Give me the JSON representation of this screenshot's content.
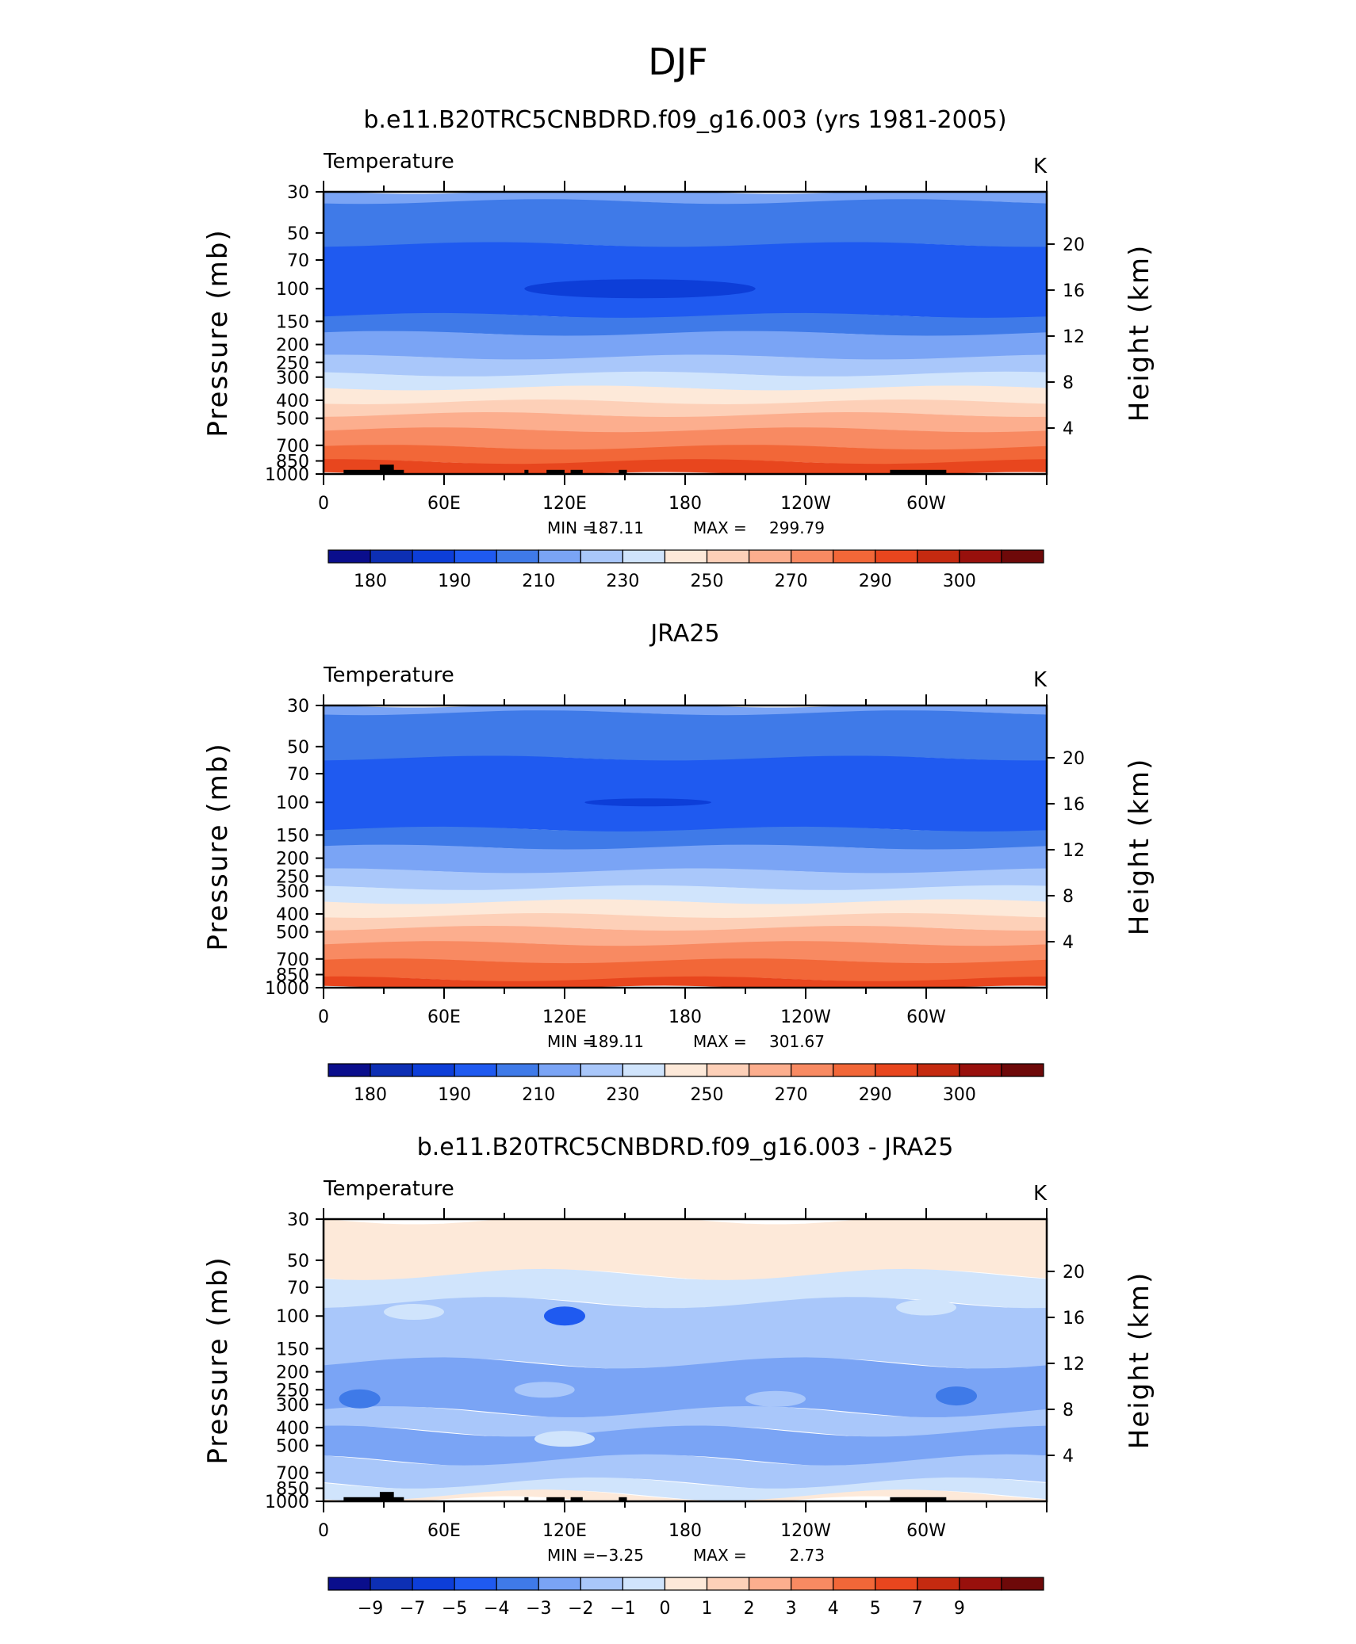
{
  "figure_title": "DJF",
  "chart_data": [
    {
      "type": "heatmap",
      "title": "b.e11.B20TRC5CNBDRD.f09_g16.003 (yrs 1981-2005)",
      "variable": "Temperature",
      "units": "K",
      "ylabel": "Pressure (mb)",
      "ylabel_right": "Height (km)",
      "x_ticks": [
        "0",
        "60E",
        "120E",
        "180",
        "120W",
        "60W"
      ],
      "y_ticks": [
        "30",
        "50",
        "70",
        "100",
        "150",
        "200",
        "250",
        "300",
        "400",
        "500",
        "700",
        "850",
        "1000"
      ],
      "height_ticks": [
        "20",
        "16",
        "12",
        "8",
        "4"
      ],
      "min_label": "MIN =",
      "min_value": "187.11",
      "max_label": "MAX =",
      "max_value": "299.79",
      "colorbar_labels": [
        "180",
        "190",
        "210",
        "230",
        "250",
        "270",
        "290",
        "300"
      ],
      "colorbar_colors": [
        "#0a0e8c",
        "#0d2fb4",
        "#0d3ed8",
        "#1f5af0",
        "#3f7ae8",
        "#7aa4f5",
        "#a9c7fa",
        "#d0e4fc",
        "#fde9d9",
        "#fdd0b8",
        "#fcae8e",
        "#f88a62",
        "#f26738",
        "#e8461e",
        "#c52a10",
        "#98100c",
        "#6e0909"
      ],
      "level_bands": [
        {
          "p_top": 30,
          "p_bottom": 34,
          "value": 215,
          "color": "#7aa4f5"
        },
        {
          "p_top": 34,
          "p_bottom": 58,
          "value": 205,
          "color": "#3f7ae8"
        },
        {
          "p_top": 58,
          "p_bottom": 140,
          "value": 197,
          "color": "#1f5af0"
        },
        {
          "p_top": 140,
          "p_bottom": 175,
          "value": 205,
          "color": "#3f7ae8"
        },
        {
          "p_top": 175,
          "p_bottom": 235,
          "value": 215,
          "color": "#7aa4f5"
        },
        {
          "p_top": 235,
          "p_bottom": 290,
          "value": 225,
          "color": "#a9c7fa"
        },
        {
          "p_top": 290,
          "p_bottom": 345,
          "value": 235,
          "color": "#d0e4fc"
        },
        {
          "p_top": 345,
          "p_bottom": 410,
          "value": 245,
          "color": "#fde9d9"
        },
        {
          "p_top": 410,
          "p_bottom": 480,
          "value": 255,
          "color": "#fdd0b8"
        },
        {
          "p_top": 480,
          "p_bottom": 580,
          "value": 263,
          "color": "#fcae8e"
        },
        {
          "p_top": 580,
          "p_bottom": 720,
          "value": 273,
          "color": "#f88a62"
        },
        {
          "p_top": 720,
          "p_bottom": 860,
          "value": 283,
          "color": "#f26738"
        },
        {
          "p_top": 860,
          "p_bottom": 1000,
          "value": 291,
          "color": "#e8461e"
        }
      ],
      "cold_core": {
        "p": 100,
        "lon_from": 100,
        "lon_to": 215,
        "value": 189,
        "color": "#0d3ed8"
      },
      "has_topography_mask": true
    },
    {
      "type": "heatmap",
      "title": "JRA25",
      "variable": "Temperature",
      "units": "K",
      "ylabel": "Pressure (mb)",
      "ylabel_right": "Height (km)",
      "x_ticks": [
        "0",
        "60E",
        "120E",
        "180",
        "120W",
        "60W"
      ],
      "y_ticks": [
        "30",
        "50",
        "70",
        "100",
        "150",
        "200",
        "250",
        "300",
        "400",
        "500",
        "700",
        "850",
        "1000"
      ],
      "height_ticks": [
        "20",
        "16",
        "12",
        "8",
        "4"
      ],
      "min_label": "MIN =",
      "min_value": "189.11",
      "max_label": "MAX =",
      "max_value": "301.67",
      "colorbar_labels": [
        "180",
        "190",
        "210",
        "230",
        "250",
        "270",
        "290",
        "300"
      ],
      "colorbar_colors": [
        "#0a0e8c",
        "#0d2fb4",
        "#0d3ed8",
        "#1f5af0",
        "#3f7ae8",
        "#7aa4f5",
        "#a9c7fa",
        "#d0e4fc",
        "#fde9d9",
        "#fdd0b8",
        "#fcae8e",
        "#f88a62",
        "#f26738",
        "#e8461e",
        "#c52a10",
        "#98100c",
        "#6e0909"
      ],
      "level_bands": [
        {
          "p_top": 30,
          "p_bottom": 33,
          "value": 215,
          "color": "#7aa4f5"
        },
        {
          "p_top": 33,
          "p_bottom": 58,
          "value": 205,
          "color": "#3f7ae8"
        },
        {
          "p_top": 58,
          "p_bottom": 140,
          "value": 197,
          "color": "#1f5af0"
        },
        {
          "p_top": 140,
          "p_bottom": 175,
          "value": 205,
          "color": "#3f7ae8"
        },
        {
          "p_top": 175,
          "p_bottom": 235,
          "value": 215,
          "color": "#7aa4f5"
        },
        {
          "p_top": 235,
          "p_bottom": 290,
          "value": 225,
          "color": "#a9c7fa"
        },
        {
          "p_top": 290,
          "p_bottom": 345,
          "value": 235,
          "color": "#d0e4fc"
        },
        {
          "p_top": 345,
          "p_bottom": 410,
          "value": 245,
          "color": "#fde9d9"
        },
        {
          "p_top": 410,
          "p_bottom": 480,
          "value": 255,
          "color": "#fdd0b8"
        },
        {
          "p_top": 480,
          "p_bottom": 580,
          "value": 263,
          "color": "#fcae8e"
        },
        {
          "p_top": 580,
          "p_bottom": 720,
          "value": 273,
          "color": "#f88a62"
        },
        {
          "p_top": 720,
          "p_bottom": 900,
          "value": 283,
          "color": "#f26738"
        },
        {
          "p_top": 900,
          "p_bottom": 1000,
          "value": 293,
          "color": "#e8461e"
        }
      ],
      "cold_core": {
        "p": 100,
        "lon_from": 130,
        "lon_to": 193,
        "value": 189,
        "color": "#0d3ed8"
      },
      "has_topography_mask": false
    },
    {
      "type": "heatmap",
      "title": "b.e11.B20TRC5CNBDRD.f09_g16.003 - JRA25",
      "variable": "Temperature",
      "units": "K",
      "ylabel": "Pressure (mb)",
      "ylabel_right": "Height (km)",
      "x_ticks": [
        "0",
        "60E",
        "120E",
        "180",
        "120W",
        "60W"
      ],
      "y_ticks": [
        "30",
        "50",
        "70",
        "100",
        "150",
        "200",
        "250",
        "300",
        "400",
        "500",
        "700",
        "850",
        "1000"
      ],
      "height_ticks": [
        "20",
        "16",
        "12",
        "8",
        "4"
      ],
      "min_label": "MIN =",
      "min_value": "−3.25",
      "max_label": "MAX =",
      "max_value": "2.73",
      "colorbar_labels": [
        "−9",
        "−7",
        "−5",
        "−4",
        "−3",
        "−2",
        "−1",
        "0",
        "1",
        "2",
        "3",
        "4",
        "5",
        "7",
        "9"
      ],
      "colorbar_colors": [
        "#0a0e8c",
        "#0d2fb4",
        "#0d3ed8",
        "#1f5af0",
        "#3f7ae8",
        "#7aa4f5",
        "#a9c7fa",
        "#d0e4fc",
        "#fde9d9",
        "#fdd0b8",
        "#fcae8e",
        "#f88a62",
        "#f26738",
        "#e8461e",
        "#c52a10",
        "#98100c",
        "#6e0909"
      ],
      "level_bands": [
        {
          "p_top": 30,
          "p_bottom": 60,
          "value": 0.5,
          "color": "#fde9d9"
        },
        {
          "p_top": 60,
          "p_bottom": 85,
          "value": -0.5,
          "color": "#d0e4fc"
        },
        {
          "p_top": 85,
          "p_bottom": 180,
          "value": -1.5,
          "color": "#a9c7fa"
        },
        {
          "p_top": 180,
          "p_bottom": 330,
          "value": -2.5,
          "color": "#7aa4f5"
        },
        {
          "p_top": 330,
          "p_bottom": 420,
          "value": -1.5,
          "color": "#a9c7fa"
        },
        {
          "p_top": 420,
          "p_bottom": 600,
          "value": -2.5,
          "color": "#7aa4f5"
        },
        {
          "p_top": 600,
          "p_bottom": 800,
          "value": -1.5,
          "color": "#a9c7fa"
        },
        {
          "p_top": 800,
          "p_bottom": 930,
          "value": -0.5,
          "color": "#d0e4fc"
        },
        {
          "p_top": 930,
          "p_bottom": 1000,
          "value": 0.5,
          "color": "#fde9d9"
        }
      ],
      "anomalies": [
        {
          "p": 280,
          "lon": 18,
          "value": -3.2,
          "color": "#3f7ae8"
        },
        {
          "p": 270,
          "lon": 315,
          "value": -3.2,
          "color": "#3f7ae8"
        },
        {
          "p": 100,
          "lon": 120,
          "value": -3.25,
          "color": "#1f5af0"
        },
        {
          "p": 95,
          "lon": 45,
          "value": -0.5,
          "color": "#d0e4fc"
        },
        {
          "p": 90,
          "lon": 300,
          "value": -0.5,
          "color": "#d0e4fc"
        },
        {
          "p": 460,
          "lon": 120,
          "value": -0.5,
          "color": "#d0e4fc"
        },
        {
          "p": 250,
          "lon": 110,
          "value": -1.5,
          "color": "#a9c7fa"
        },
        {
          "p": 280,
          "lon": 225,
          "value": -1.5,
          "color": "#a9c7fa"
        }
      ],
      "has_topography_mask": true
    }
  ],
  "topography_blocks": [
    {
      "lon_from": 10,
      "lon_to": 40,
      "p_from": 950
    },
    {
      "lon_from": 28,
      "lon_to": 35,
      "p_from": 890
    },
    {
      "lon_from": 100,
      "lon_to": 102,
      "p_from": 950
    },
    {
      "lon_from": 111,
      "lon_to": 120,
      "p_from": 950
    },
    {
      "lon_from": 123,
      "lon_to": 129,
      "p_from": 950
    },
    {
      "lon_from": 147,
      "lon_to": 151,
      "p_from": 950
    },
    {
      "lon_from": 282,
      "lon_to": 310,
      "p_from": 950
    }
  ]
}
